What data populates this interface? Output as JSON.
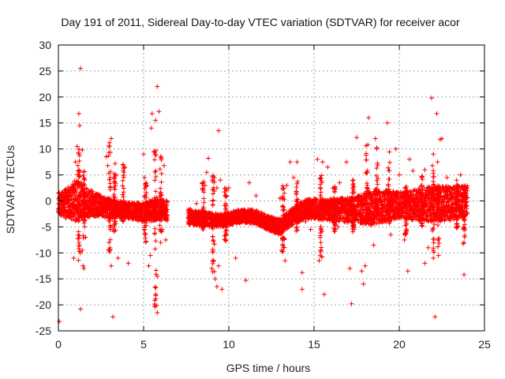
{
  "chart_data": {
    "type": "scatter",
    "title": "Day 191 of 2011, Sidereal Day-to-day VTEC variation (SDTVAR) for receiver acor",
    "xlabel": "GPS time / hours",
    "ylabel": "SDTVAR / TECUs",
    "xlim": [
      0,
      25
    ],
    "ylim": [
      -25,
      30
    ],
    "xticks": [
      0,
      5,
      10,
      15,
      20,
      25
    ],
    "yticks": [
      -25,
      -20,
      -15,
      -10,
      -5,
      0,
      5,
      10,
      15,
      20,
      25,
      30
    ],
    "grid": true,
    "marker": "+",
    "marker_color": "#ff0000",
    "series": [
      {
        "name": "SDTVAR",
        "points": [
          [
            0.05,
            -23.2
          ],
          [
            1.3,
            25.5
          ],
          [
            1.2,
            16.8
          ],
          [
            1.25,
            14.5
          ],
          [
            1.1,
            10.5
          ],
          [
            1.4,
            9.8
          ],
          [
            1.0,
            7.5
          ],
          [
            1.15,
            5.0
          ],
          [
            1.35,
            3.5
          ],
          [
            1.2,
            -8.0
          ],
          [
            1.3,
            -10.0
          ],
          [
            1.45,
            -12.5
          ],
          [
            1.5,
            -13.0
          ],
          [
            1.4,
            -9.5
          ],
          [
            1.3,
            -20.8
          ],
          [
            1.6,
            -7.0
          ],
          [
            0.9,
            -11.0
          ],
          [
            3.0,
            11.2
          ],
          [
            3.1,
            12.0
          ],
          [
            3.2,
            -22.3
          ],
          [
            3.1,
            -12.5
          ],
          [
            3.5,
            -11.0
          ],
          [
            3.8,
            7.0
          ],
          [
            3.9,
            6.5
          ],
          [
            4.1,
            -12.0
          ],
          [
            2.8,
            8.5
          ],
          [
            2.9,
            6.8
          ],
          [
            5.0,
            9.0
          ],
          [
            5.05,
            4.5
          ],
          [
            5.2,
            3.0
          ],
          [
            5.3,
            -12.5
          ],
          [
            5.4,
            -10.5
          ],
          [
            5.5,
            16.8
          ],
          [
            5.45,
            14.0
          ],
          [
            5.7,
            15.5
          ],
          [
            5.6,
            9.5
          ],
          [
            5.8,
            22.0
          ],
          [
            5.9,
            17.2
          ],
          [
            6.2,
            6.8
          ],
          [
            5.7,
            -18.0
          ],
          [
            5.8,
            -14.5
          ],
          [
            5.8,
            -21.5
          ],
          [
            6.0,
            -8.0
          ],
          [
            6.3,
            -7.5
          ],
          [
            6.1,
            -5.5
          ],
          [
            8.1,
            -0.5
          ],
          [
            8.6,
            3.0
          ],
          [
            8.7,
            5.5
          ],
          [
            8.8,
            8.2
          ],
          [
            9.3,
            2.5
          ],
          [
            9.4,
            13.5
          ],
          [
            9.5,
            4.0
          ],
          [
            9.0,
            -13.0
          ],
          [
            9.2,
            -15.0
          ],
          [
            9.3,
            -16.5
          ],
          [
            9.6,
            -17.0
          ],
          [
            9.1,
            -11.5
          ],
          [
            9.4,
            -12.5
          ],
          [
            10.0,
            2.5
          ],
          [
            10.4,
            -11.0
          ],
          [
            11.0,
            -15.3
          ],
          [
            11.2,
            3.5
          ],
          [
            11.6,
            1.0
          ],
          [
            12.0,
            -3.0
          ],
          [
            13.0,
            0.5
          ],
          [
            13.4,
            3.0
          ],
          [
            13.6,
            7.5
          ],
          [
            14.0,
            7.5
          ],
          [
            13.8,
            4.5
          ],
          [
            13.2,
            -5.0
          ],
          [
            13.1,
            -9.5
          ],
          [
            13.3,
            -11.5
          ],
          [
            14.3,
            -13.8
          ],
          [
            14.3,
            -17.0
          ],
          [
            14.5,
            -4.0
          ],
          [
            14.8,
            -5.5
          ],
          [
            15.2,
            8.0
          ],
          [
            15.5,
            7.5
          ],
          [
            15.6,
            -18.0
          ],
          [
            15.4,
            -9.5
          ],
          [
            15.3,
            -11.5
          ],
          [
            15.8,
            6.5
          ],
          [
            16.1,
            2.5
          ],
          [
            16.4,
            -5.0
          ],
          [
            16.9,
            -3.5
          ],
          [
            16.5,
            3.5
          ],
          [
            16.9,
            7.5
          ],
          [
            17.2,
            -19.8
          ],
          [
            17.1,
            -13.0
          ],
          [
            17.5,
            12.2
          ],
          [
            17.3,
            4.0
          ],
          [
            17.9,
            -16.0
          ],
          [
            17.8,
            -13.5
          ],
          [
            18.2,
            16.0
          ],
          [
            18.0,
            -12.5
          ],
          [
            18.5,
            -8.5
          ],
          [
            18.6,
            12.0
          ],
          [
            19.3,
            15.0
          ],
          [
            19.5,
            -6.5
          ],
          [
            19.8,
            10.0
          ],
          [
            20.0,
            5.0
          ],
          [
            20.3,
            -7.5
          ],
          [
            20.5,
            -13.5
          ],
          [
            20.6,
            8.0
          ],
          [
            20.8,
            5.8
          ],
          [
            21.0,
            -3.0
          ],
          [
            21.5,
            6.0
          ],
          [
            21.9,
            19.8
          ],
          [
            22.0,
            9.0
          ],
          [
            22.2,
            16.8
          ],
          [
            22.25,
            7.5
          ],
          [
            22.4,
            11.8
          ],
          [
            22.5,
            12.0
          ],
          [
            22.1,
            -22.3
          ],
          [
            22.0,
            -11.0
          ],
          [
            22.3,
            -10.5
          ],
          [
            22.8,
            4.5
          ],
          [
            23.0,
            -3.5
          ],
          [
            23.2,
            2.0
          ],
          [
            23.6,
            5.0
          ],
          [
            23.8,
            -8.0
          ],
          [
            23.8,
            -14.2
          ],
          [
            21.5,
            -12.0
          ],
          [
            21.7,
            -9.0
          ]
        ]
      }
    ],
    "dense_band": {
      "x_step": 0.005,
      "gap_hours": [
        6.4,
        7.6
      ],
      "center_curve": [
        [
          0.0,
          -0.5
        ],
        [
          0.5,
          -0.5
        ],
        [
          1.0,
          0.0
        ],
        [
          1.5,
          -0.3
        ],
        [
          2.0,
          -0.5
        ],
        [
          3.0,
          -1.5
        ],
        [
          4.0,
          -1.8
        ],
        [
          5.0,
          -2.2
        ],
        [
          6.0,
          -1.5
        ],
        [
          6.4,
          -2.0
        ],
        [
          7.6,
          -3.0
        ],
        [
          8.5,
          -3.5
        ],
        [
          9.5,
          -3.8
        ],
        [
          10.5,
          -3.0
        ],
        [
          11.5,
          -3.0
        ],
        [
          12.5,
          -4.5
        ],
        [
          13.0,
          -5.0
        ],
        [
          13.5,
          -3.5
        ],
        [
          14.5,
          -1.5
        ],
        [
          16.0,
          -1.8
        ],
        [
          17.0,
          -1.8
        ],
        [
          18.0,
          -1.5
        ],
        [
          19.0,
          -1.0
        ],
        [
          20.0,
          -0.8
        ],
        [
          21.0,
          -0.8
        ],
        [
          22.0,
          -0.5
        ],
        [
          23.0,
          -0.5
        ],
        [
          24.0,
          0.0
        ]
      ],
      "half_width_curve": [
        [
          0.0,
          2.0
        ],
        [
          1.0,
          4.0
        ],
        [
          1.5,
          3.0
        ],
        [
          2.5,
          2.0
        ],
        [
          4.0,
          1.5
        ],
        [
          5.5,
          2.0
        ],
        [
          6.4,
          2.0
        ],
        [
          7.6,
          1.5
        ],
        [
          10.0,
          1.2
        ],
        [
          13.0,
          1.5
        ],
        [
          15.0,
          2.0
        ],
        [
          17.5,
          2.5
        ],
        [
          18.5,
          3.5
        ],
        [
          20.0,
          2.5
        ],
        [
          22.0,
          3.5
        ],
        [
          24.0,
          3.0
        ]
      ],
      "spikes": [
        [
          1.2,
          10.0,
          -12.0
        ],
        [
          1.5,
          6.0,
          -8.0
        ],
        [
          3.0,
          11.0,
          -10.0
        ],
        [
          3.3,
          8.0,
          -6.0
        ],
        [
          3.8,
          7.0,
          -4.0
        ],
        [
          5.1,
          4.0,
          -8.0
        ],
        [
          5.7,
          10.0,
          -21.5
        ],
        [
          6.0,
          9.0,
          -6.0
        ],
        [
          8.5,
          4.0,
          -6.0
        ],
        [
          9.1,
          5.0,
          -14.0
        ],
        [
          9.8,
          3.0,
          -8.0
        ],
        [
          13.2,
          3.0,
          -10.0
        ],
        [
          14.0,
          5.0,
          -6.0
        ],
        [
          15.4,
          5.0,
          -11.5
        ],
        [
          16.2,
          3.0,
          -6.0
        ],
        [
          17.3,
          4.0,
          -6.0
        ],
        [
          18.1,
          11.0,
          -4.0
        ],
        [
          18.7,
          11.0,
          -3.0
        ],
        [
          19.4,
          10.0,
          -5.0
        ],
        [
          20.4,
          3.0,
          -7.0
        ],
        [
          21.3,
          5.0,
          -5.0
        ],
        [
          22.0,
          7.0,
          -10.0
        ],
        [
          22.3,
          4.0,
          -9.0
        ],
        [
          23.4,
          4.0,
          -6.0
        ],
        [
          23.8,
          3.0,
          -8.5
        ]
      ]
    }
  }
}
